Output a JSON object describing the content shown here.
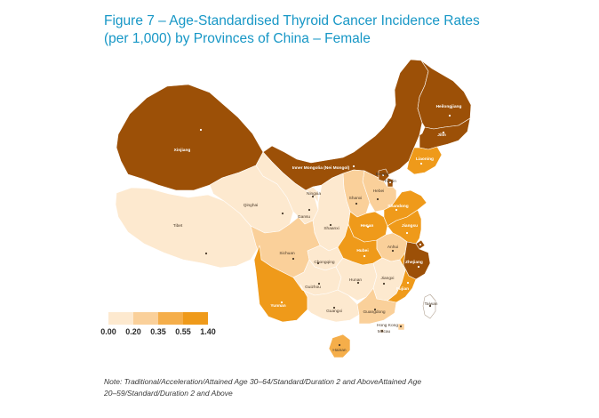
{
  "title": {
    "line1": "Figure 7 – Age-Standardised Thyroid Cancer Incidence Rates",
    "line2": "(per 1,000) by Provinces of China – Female"
  },
  "colors": {
    "bin1": "#fde9cf",
    "bin2": "#fad09a",
    "bin3": "#f5ae4a",
    "bin4": "#ef9a1a",
    "bin5": "#9c5007",
    "title": "#1797c6"
  },
  "legend": {
    "ticks": [
      "0.00",
      "0.20",
      "0.35",
      "0.55",
      "1.40"
    ]
  },
  "map": {
    "provinces": [
      {
        "name": "Xinjiang",
        "bin": 5
      },
      {
        "name": "Tibet",
        "bin": 1
      },
      {
        "name": "Qinghai",
        "bin": 1
      },
      {
        "name": "Gansu",
        "bin": 1
      },
      {
        "name": "Ningxia",
        "bin": 1
      },
      {
        "name": "Inner Mongolia (Nei Mongol)",
        "bin": 5
      },
      {
        "name": "Heilongjiang",
        "bin": 5
      },
      {
        "name": "Jilin",
        "bin": 5
      },
      {
        "name": "Liaoning",
        "bin": 4
      },
      {
        "name": "Hebei",
        "bin": 2
      },
      {
        "name": "Shanxi",
        "bin": 2
      },
      {
        "name": "Shaanxi",
        "bin": 1
      },
      {
        "name": "Sichuan",
        "bin": 2
      },
      {
        "name": "Chongqing",
        "bin": 1
      },
      {
        "name": "Yunnan",
        "bin": 4
      },
      {
        "name": "Guizhou",
        "bin": 1
      },
      {
        "name": "Guangxi",
        "bin": 1
      },
      {
        "name": "Guangdong",
        "bin": 2
      },
      {
        "name": "Hong Kong",
        "bin": 2
      },
      {
        "name": "Macau",
        "bin": 1
      },
      {
        "name": "Hainan",
        "bin": 3
      },
      {
        "name": "Hunan",
        "bin": 1
      },
      {
        "name": "Hubei",
        "bin": 4
      },
      {
        "name": "Henan",
        "bin": 4
      },
      {
        "name": "Shandong",
        "bin": 4
      },
      {
        "name": "Jiangsu",
        "bin": 4
      },
      {
        "name": "Anhui",
        "bin": 2
      },
      {
        "name": "Jiangxi",
        "bin": 1
      },
      {
        "name": "Fujian",
        "bin": 4
      },
      {
        "name": "Zhejiang",
        "bin": 5
      },
      {
        "name": "Shanghai",
        "bin": 5
      },
      {
        "name": "Beijing",
        "bin": 5
      },
      {
        "name": "Tianjin",
        "bin": 5
      },
      {
        "name": "Taiwan",
        "bin": 0
      }
    ]
  },
  "note": {
    "line1": "Note: Traditional/Acceleration/Attained Age 30–64/Standard/Duration 2 and AboveAttained Age",
    "line2": "20–59/Standard/Duration 2 and Above"
  }
}
